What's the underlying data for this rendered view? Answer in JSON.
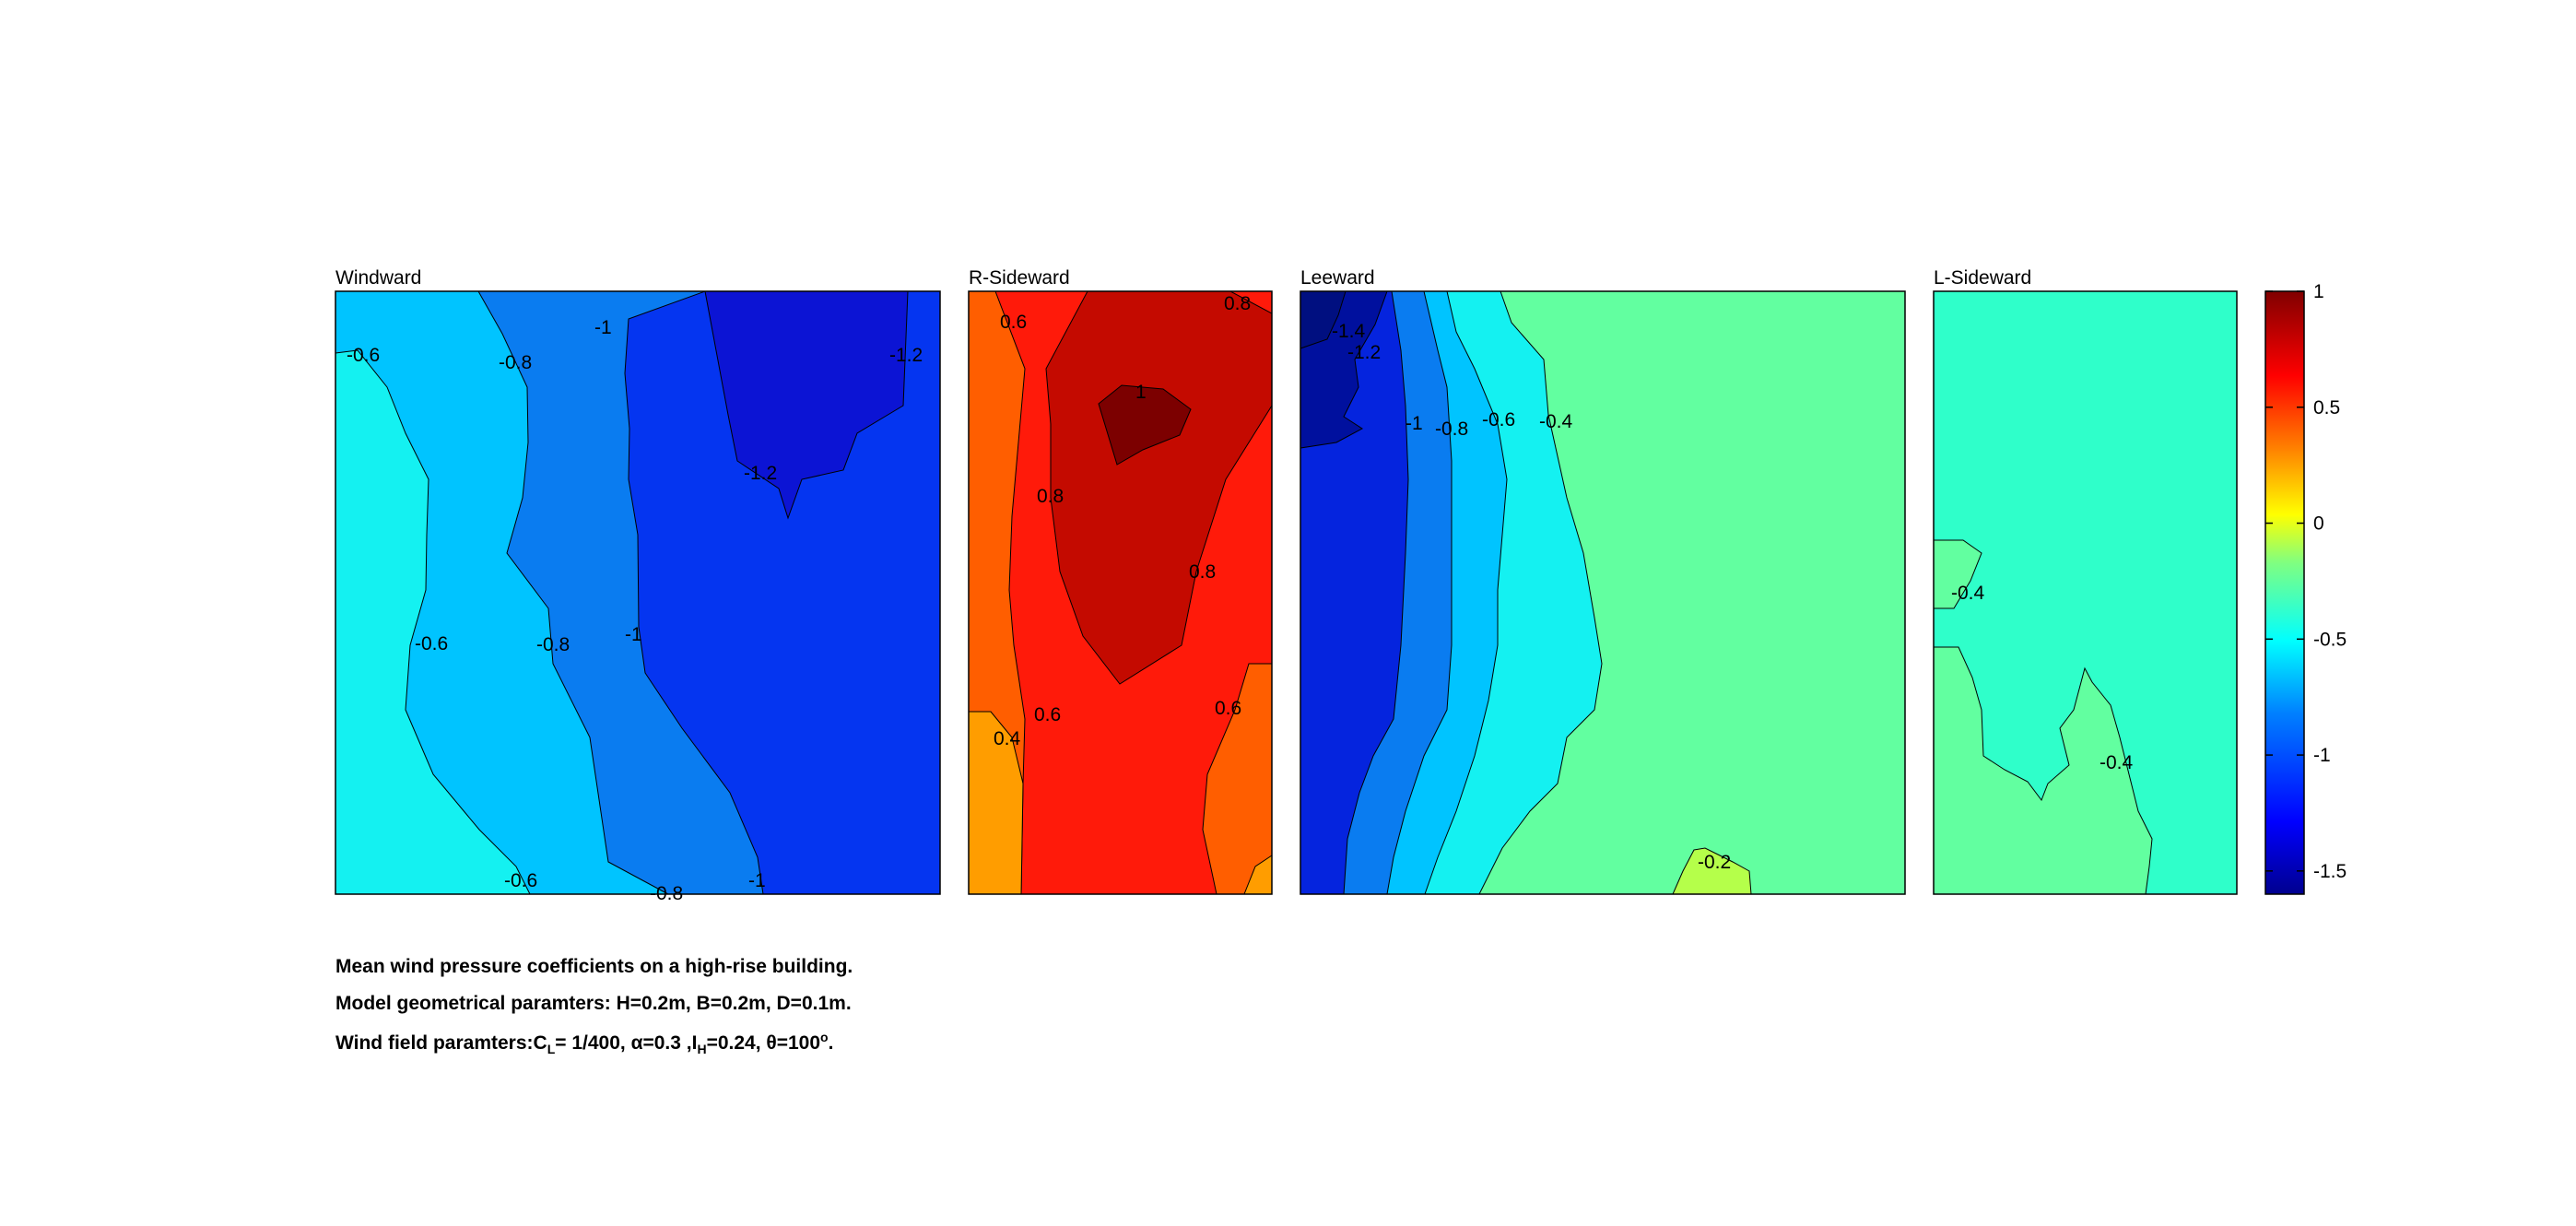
{
  "chart_data": {
    "type": "contour",
    "colorbar": {
      "range": [
        -1.6,
        1.0
      ],
      "ticks": [
        1,
        0.5,
        0,
        -0.5,
        -1,
        -1.5
      ],
      "tick_labels": [
        "1",
        "0.5",
        "0",
        "-0.5",
        "-1",
        "-1.5"
      ],
      "colormap": "jet"
    },
    "panels": [
      {
        "title": "Windward",
        "regions": [
          {
            "level": -0.6,
            "color": "#14f1f1"
          },
          {
            "level": -0.8,
            "color": "#00c4ff"
          },
          {
            "level": -1.0,
            "color": "#0a7cf0"
          },
          {
            "level": -1.2,
            "color": "#0535f0"
          },
          {
            "level": -1.3,
            "color": "#0c14d4"
          }
        ],
        "contour_labels": [
          "-0.6",
          "-0.8",
          "-1",
          "-1.2",
          "-1.2",
          "-0.6",
          "-0.8",
          "-1",
          "-0.6",
          "-0.8",
          "-1"
        ]
      },
      {
        "title": "R-Sideward",
        "regions": [
          {
            "level": 0.4,
            "color": "#ff9d00"
          },
          {
            "level": 0.6,
            "color": "#ff5e00"
          },
          {
            "level": 0.8,
            "color": "#ff1a0a"
          },
          {
            "level": 0.9,
            "color": "#c40a00"
          },
          {
            "level": 1.0,
            "color": "#7c0000"
          }
        ],
        "contour_labels": [
          "0.6",
          "0.8",
          "1",
          "0.8",
          "0.8",
          "0.6",
          "0.4",
          "0.6"
        ]
      },
      {
        "title": "Leeward",
        "regions": [
          {
            "level": -1.4,
            "color": "#00109e"
          },
          {
            "level": -1.2,
            "color": "#0524de"
          },
          {
            "level": -1.0,
            "color": "#0a7cf0"
          },
          {
            "level": -0.8,
            "color": "#00c4ff"
          },
          {
            "level": -0.6,
            "color": "#14f1f1"
          },
          {
            "level": -0.4,
            "color": "#62ffa0"
          },
          {
            "level": -0.2,
            "color": "#b5ff4a"
          }
        ],
        "contour_labels": [
          "-1.4",
          "-1.2",
          "-1",
          "-0.8",
          "-0.6",
          "-0.4",
          "-0.2"
        ]
      },
      {
        "title": "L-Sideward",
        "regions": [
          {
            "level": -0.45,
            "color": "#2fffca"
          },
          {
            "level": -0.4,
            "color": "#62ffa0"
          }
        ],
        "contour_labels": [
          "-0.4",
          "-0.4"
        ]
      }
    ]
  },
  "caption": {
    "line1": "Mean wind pressure coefficients on a high-rise building.",
    "line2": "Model geometrical paramters: H=0.2m, B=0.2m, D=0.1m.",
    "line3_a": "Wind field paramters:C",
    "line3_sub1": "L",
    "line3_b": "= 1/400, α=0.3 ,I",
    "line3_sub2": "H",
    "line3_c": "=0.24, θ=100",
    "line3_sup": "o",
    "line3_d": "."
  }
}
